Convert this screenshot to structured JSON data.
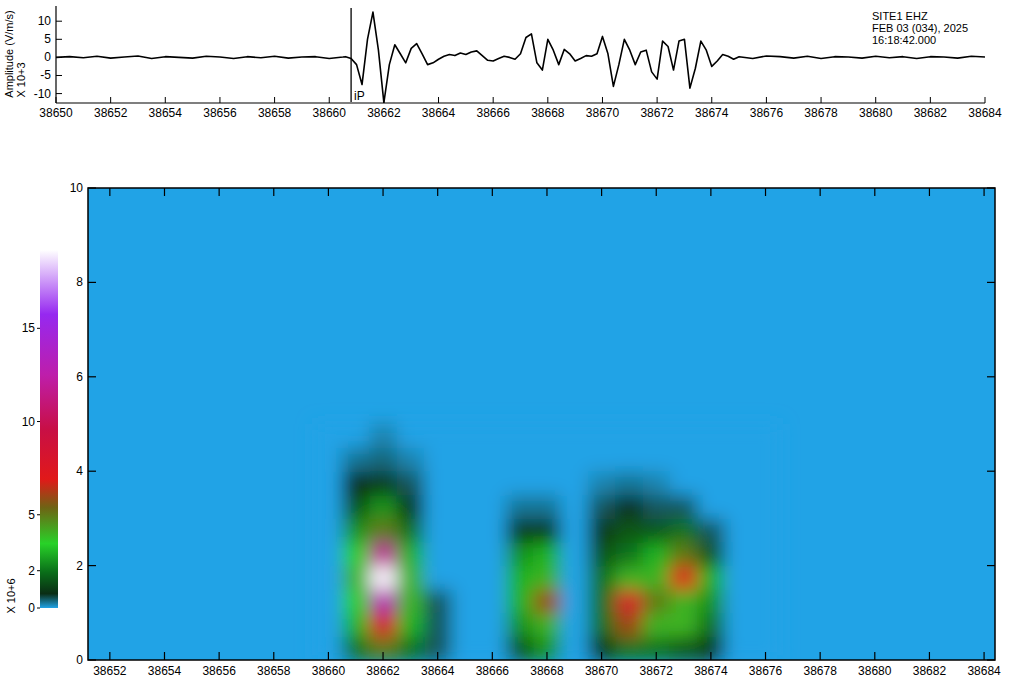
{
  "chart_data": [
    {
      "type": "line",
      "ylabel": "Amplitude (V/m/s)",
      "ylabel_multiplier": "X 10+3",
      "annotations": [
        "SITE1  EHZ",
        "FEB 03 (034), 2025",
        "16:18:42.000"
      ],
      "picks": [
        {
          "label": "iP",
          "x": 38660.8
        }
      ],
      "color": "#000000",
      "xlim": [
        38650,
        38684
      ],
      "xticks": [
        38650,
        38652,
        38654,
        38656,
        38658,
        38660,
        38662,
        38664,
        38666,
        38668,
        38670,
        38672,
        38674,
        38676,
        38678,
        38680,
        38682,
        38684
      ],
      "ylim": [
        -12.6,
        14.2
      ],
      "yticks": [
        -10,
        -5,
        0,
        5,
        10
      ],
      "x": [
        38650,
        38650.5,
        38651,
        38651.5,
        38652,
        38652.5,
        38653,
        38653.5,
        38654,
        38654.5,
        38655,
        38655.5,
        38656,
        38656.5,
        38657,
        38657.5,
        38658,
        38658.5,
        38659,
        38659.5,
        38660,
        38660.5,
        38660.6,
        38660.8,
        38661.0,
        38661.2,
        38661.4,
        38661.6,
        38661.8,
        38662.0,
        38662.2,
        38662.4,
        38662.6,
        38662.8,
        38663.0,
        38663.2,
        38663.4,
        38663.6,
        38663.8,
        38664.0,
        38664.2,
        38664.4,
        38664.6,
        38664.8,
        38665.0,
        38665.2,
        38665.4,
        38665.6,
        38665.8,
        38666.0,
        38666.2,
        38666.4,
        38666.6,
        38666.8,
        38667.0,
        38667.2,
        38667.4,
        38667.6,
        38667.8,
        38668.0,
        38668.2,
        38668.4,
        38668.6,
        38668.8,
        38669.0,
        38669.2,
        38669.4,
        38669.6,
        38669.8,
        38670.0,
        38670.2,
        38670.4,
        38670.6,
        38670.8,
        38671.0,
        38671.2,
        38671.4,
        38671.6,
        38671.8,
        38672.0,
        38672.2,
        38672.4,
        38672.6,
        38672.8,
        38673.0,
        38673.2,
        38673.4,
        38673.6,
        38673.8,
        38674.0,
        38674.2,
        38674.4,
        38674.6,
        38674.8,
        38675.0,
        38675.5,
        38676,
        38676.5,
        38677,
        38677.5,
        38678,
        38678.5,
        38679,
        38679.5,
        38680,
        38680.5,
        38681,
        38681.5,
        38682,
        38682.5,
        38683,
        38683.5,
        38684
      ],
      "values": [
        0,
        0.2,
        -0.1,
        0.3,
        -0.2,
        0.1,
        0.4,
        -0.3,
        0.2,
        0,
        -0.2,
        0.3,
        0.1,
        -0.3,
        0.2,
        -0.1,
        0.3,
        -0.2,
        0.1,
        0.2,
        -0.3,
        0.1,
        0.2,
        -0.3,
        -2,
        -7.5,
        5,
        12.5,
        2,
        -12.5,
        -2,
        3.5,
        1,
        -1.5,
        2.5,
        3.8,
        1,
        -2,
        -1.5,
        -0.5,
        0.3,
        0.8,
        0.5,
        1.2,
        0.8,
        1.5,
        1.8,
        0.5,
        -0.8,
        -1,
        -0.3,
        0.3,
        0,
        -0.5,
        1,
        5.5,
        6.5,
        -1.5,
        -3.5,
        5,
        2,
        -2,
        2.2,
        1,
        -1,
        -0.3,
        0.5,
        0.3,
        1,
        5.8,
        1,
        -8,
        -2,
        5,
        2,
        -2,
        1.5,
        2,
        -4,
        -6,
        4.5,
        3,
        -3.5,
        4.5,
        5,
        -8.5,
        -3,
        4.5,
        2,
        -2.5,
        -1,
        0.8,
        0.3,
        -0.5,
        0.2,
        -0.3,
        0.4,
        0.2,
        -0.2,
        0.3,
        -0.3,
        0.2,
        0.1,
        -0.2,
        0.3,
        -0.1,
        0.2,
        -0.3,
        0.2,
        0.1,
        -0.2,
        0.3,
        0.1
      ]
    },
    {
      "type": "heatmap",
      "xlim": [
        38651.2,
        38684.4
      ],
      "xticks": [
        38652,
        38654,
        38656,
        38658,
        38660,
        38662,
        38664,
        38666,
        38668,
        38670,
        38672,
        38674,
        38676,
        38678,
        38680,
        38682,
        38684
      ],
      "ylim": [
        0,
        10
      ],
      "yticks": [
        0,
        2,
        4,
        6,
        8,
        10
      ],
      "x": [
        38660,
        38661,
        38662,
        38663,
        38664,
        38665,
        38666,
        38667,
        38668,
        38669,
        38670,
        38671,
        38672,
        38673,
        38674,
        38675,
        38676
      ],
      "y": [
        0.25,
        0.75,
        1.25,
        1.75,
        2.25,
        2.75,
        3.25,
        3.75,
        4.25,
        4.75
      ],
      "z": [
        [
          0,
          2,
          5,
          2,
          0.5,
          0,
          0,
          1.5,
          2.5,
          0,
          1,
          2,
          2,
          1.5,
          1,
          0,
          0
        ],
        [
          0,
          3,
          8,
          3,
          0.5,
          0,
          0,
          2.5,
          4,
          0,
          2,
          6,
          4,
          4,
          2,
          0,
          0
        ],
        [
          0,
          3.5,
          13,
          4,
          0.5,
          0,
          0,
          3,
          6,
          0,
          2,
          8,
          5,
          4,
          2.5,
          0,
          0
        ],
        [
          0,
          4,
          19,
          4,
          0,
          0,
          0,
          3,
          4,
          0,
          2,
          4,
          4,
          7,
          3,
          0,
          0
        ],
        [
          0,
          3.5,
          12,
          3,
          0,
          0,
          0,
          2.5,
          3,
          0,
          1.5,
          2,
          3,
          5,
          1.5,
          0,
          0
        ],
        [
          0,
          2.5,
          5,
          2,
          0,
          0,
          0,
          1,
          1,
          0,
          1,
          1.5,
          1.5,
          2,
          0.5,
          0,
          0
        ],
        [
          0,
          1.5,
          2.5,
          1,
          0,
          0,
          0,
          0.3,
          0.3,
          0,
          0.5,
          0.8,
          0.5,
          0.5,
          0,
          0,
          0
        ],
        [
          0,
          0.8,
          1,
          0.5,
          0,
          0,
          0,
          0,
          0,
          0,
          0.2,
          0.3,
          0.2,
          0,
          0,
          0,
          0
        ],
        [
          0,
          0.3,
          0.4,
          0.2,
          0,
          0,
          0,
          0,
          0,
          0,
          0,
          0,
          0,
          0,
          0,
          0,
          0
        ],
        [
          0,
          0,
          0.2,
          0,
          0,
          0,
          0,
          0,
          0,
          0,
          0,
          0,
          0,
          0,
          0,
          0,
          0
        ]
      ],
      "colorbar": {
        "range": [
          0,
          19.2
        ],
        "ticks": [
          0,
          2,
          5,
          10,
          15
        ],
        "label": "X 10+6"
      }
    }
  ]
}
